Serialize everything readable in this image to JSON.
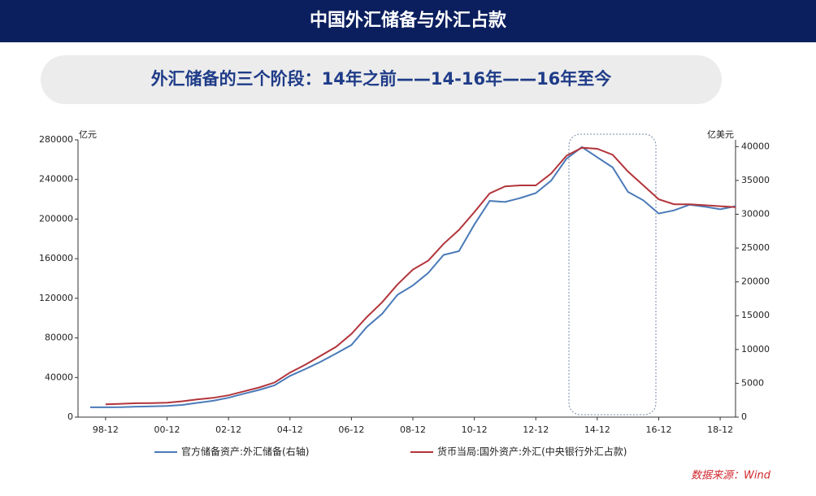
{
  "header": {
    "title": "中国外汇储备与外汇占款"
  },
  "subtitle": "外汇储备的三个阶段：14年之前——14-16年——16年至今",
  "source": "数据来源：Wind",
  "chart_data": {
    "type": "line",
    "categories": [
      null,
      "98-12",
      null,
      null,
      null,
      "00-12",
      null,
      null,
      null,
      "02-12",
      null,
      null,
      null,
      "04-12",
      null,
      null,
      null,
      "06-12",
      null,
      null,
      null,
      "08-12",
      null,
      null,
      null,
      "10-12",
      null,
      null,
      null,
      "12-12",
      null,
      null,
      null,
      "14-12",
      null,
      null,
      null,
      "16-12",
      null,
      null,
      null,
      "18-12",
      null
    ],
    "ylabel": "亿元",
    "y2label": "亿美元",
    "ylim": [
      0,
      280000
    ],
    "yticks": [
      0,
      40000,
      80000,
      120000,
      160000,
      200000,
      240000,
      280000
    ],
    "y2lim": [
      0,
      41000
    ],
    "y2ticks": [
      0,
      5000,
      10000,
      15000,
      20000,
      25000,
      30000,
      35000,
      40000
    ],
    "series": [
      {
        "name": "官方储备资产:外汇储备(右轴)",
        "color": "#4a7ab8",
        "axis": "y2",
        "values": [
          1450,
          1450,
          1470,
          1550,
          1600,
          1650,
          1800,
          2120,
          2420,
          2860,
          3460,
          4030,
          4710,
          6100,
          7110,
          8190,
          9410,
          10660,
          13330,
          15280,
          18090,
          19460,
          21320,
          23990,
          24540,
          28470,
          31970,
          31810,
          32400,
          33120,
          34970,
          38210,
          39930,
          38430,
          36930,
          33300,
          32050,
          30110,
          30570,
          31400,
          31120,
          30730,
          31190
        ]
      },
      {
        "name": "货币当局:国外资产:外汇(中央银行外汇占款)",
        "color": "#b2353b",
        "values": [
          null,
          13000,
          13500,
          14000,
          14200,
          14500,
          16000,
          18000,
          19500,
          22000,
          26000,
          30000,
          35000,
          45000,
          53000,
          62000,
          71000,
          84000,
          101000,
          116000,
          134000,
          149000,
          158000,
          175000,
          189000,
          207000,
          226000,
          233000,
          234000,
          234000,
          246000,
          264000,
          272000,
          271000,
          265000,
          248000,
          234000,
          220000,
          215000,
          215000,
          214000,
          213000,
          212000
        ]
      }
    ]
  }
}
